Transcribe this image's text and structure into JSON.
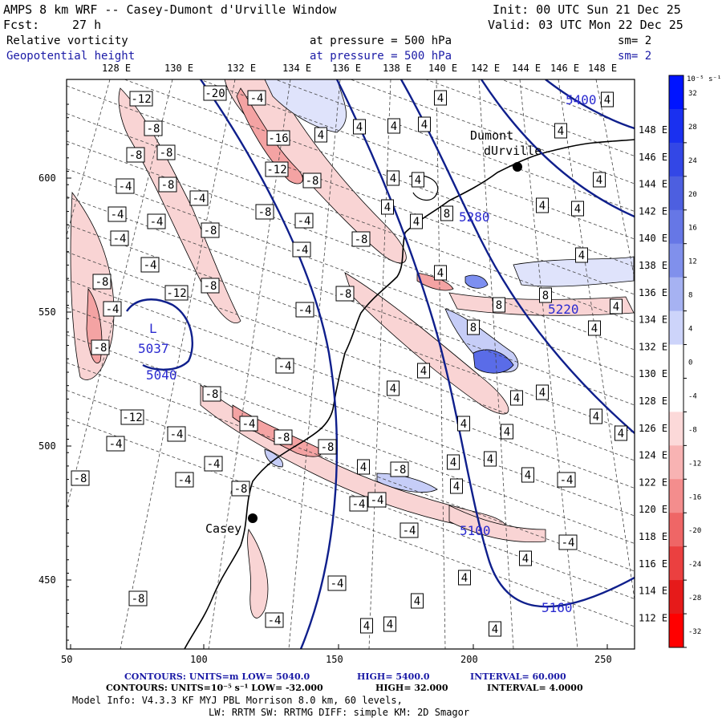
{
  "header": {
    "title": "AMPS 8 km WRF -- Casey-Dumont d'Urville Window",
    "init": "Init: 00 UTC Sun 21 Dec 25",
    "fcst_label": "Fcst:",
    "fcst_value": "27 h",
    "valid": "Valid: 03 UTC Mon 22 Dec 25"
  },
  "fields": [
    {
      "name": "Relative vorticity",
      "level": "at pressure =  500 hPa",
      "sm": "sm= 2"
    },
    {
      "name": "Geopotential height",
      "level": "at pressure =  500 hPa",
      "sm": "sm= 2"
    }
  ],
  "top_lon_labels": [
    "128 E",
    "130 E",
    "132 E",
    "134 E",
    "136 E",
    "138 E",
    "140 E",
    "142 E",
    "144 E",
    "146 E",
    "148 E"
  ],
  "right_lat_labels": [
    "148 E",
    "146 E",
    "144 E",
    "142 E",
    "140 E",
    "138 E",
    "136 E",
    "134 E",
    "132 E",
    "130 E",
    "128 E",
    "126 E",
    "124 E",
    "122 E",
    "120 E",
    "118 E",
    "116 E",
    "114 E",
    "112 E"
  ],
  "x_axis_ticks": [
    "50",
    "100",
    "150",
    "200",
    "250"
  ],
  "y_axis_ticks": [
    "600",
    "550",
    "500",
    "450"
  ],
  "colorbar": {
    "unit_label": "10⁻⁵ s⁻¹",
    "ticks": [
      "32",
      "28",
      "24",
      "20",
      "16",
      "12",
      "8",
      "4",
      "0",
      "-4",
      "-8",
      "-12",
      "-16",
      "-20",
      "-24",
      "-28",
      "-32"
    ],
    "colors": [
      "#0014ff",
      "#1a30f0",
      "#3347e6",
      "#4d5fe0",
      "#6677e6",
      "#8090ec",
      "#a6b2f2",
      "#cdd4fa",
      "#ffffff",
      "#ffffff",
      "#fcd9d9",
      "#f8b3b3",
      "#f48d8d",
      "#ef6666",
      "#eb4040",
      "#e61a1a",
      "#ff0000"
    ]
  },
  "map_labels": {
    "station_1": "Dumont",
    "station_1b": "dUrville",
    "station_2": "Casey",
    "low_marker": "L",
    "low_value": "5037",
    "contour_5040": "5040",
    "contour_5280": "5280",
    "contour_5400": "5400",
    "contour_5160": "5160",
    "contour_5100": "5100",
    "contour_5220": "5220"
  },
  "vorticity_boxes": [
    "-12",
    "-8",
    "-20",
    "-8",
    "-8",
    "-4",
    "-16",
    "-8",
    "-4",
    "-12",
    "-8",
    "-8",
    "-4",
    "-4",
    "-4",
    "-8",
    "-4",
    "-8",
    "-4",
    "-8",
    "-4",
    "-4",
    "-8",
    "-12",
    "-8",
    "-4",
    "-4",
    "-8",
    "-8",
    "-4",
    "-8",
    "-12",
    "-4",
    "-8",
    "-4",
    "-4",
    "-8",
    "-8",
    "-4",
    "-4",
    "-8",
    "-4",
    "-4",
    "-4",
    "-4",
    "4",
    "4",
    "4",
    "4",
    "4",
    "4",
    "4",
    "4",
    "4",
    "4",
    "4",
    "8",
    "4",
    "4",
    "4",
    "4",
    "4",
    "4",
    "8",
    "4",
    "4",
    "8",
    "8",
    "4",
    "4",
    "4",
    "4",
    "-8",
    "4",
    "4",
    "4",
    "4",
    "4",
    "4",
    "4",
    "-4",
    "-4",
    "-8",
    "4",
    "4",
    "4",
    "4",
    "-4",
    "4",
    "4",
    "4",
    "4"
  ],
  "footer": {
    "line1_a": "CONTOURS:  UNITS=m  LOW=  5040.0",
    "line1_b": "HIGH=  5400.0",
    "line1_c": "INTERVAL=  60.000",
    "line2_a": "CONTOURS:  UNITS=10⁻⁵ s⁻¹  LOW= -32.000",
    "line2_b": "HIGH=  32.000",
    "line2_c": "INTERVAL=  4.0000",
    "line3": "Model Info: V4.3.3   KF      MYJ PBL  Morrison          8.0 km,  60 levels,",
    "line4": "LW: RRTM SW: RRTMG   DIFF: simple KM: 2D Smagor"
  }
}
